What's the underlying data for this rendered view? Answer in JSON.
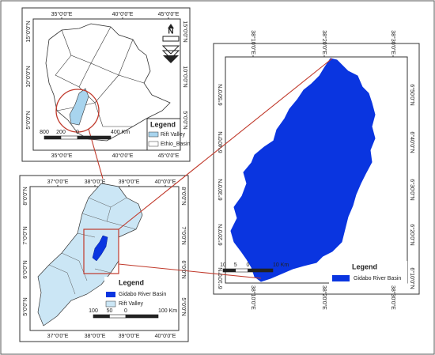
{
  "maps": [
    {
      "x_labels": [
        "35°0'0\"E",
        "40°0'0\"E",
        "45°0'0\"E"
      ],
      "y_labels": [
        "15°0'0\"N",
        "10°0'0\"N",
        "5°0'0\"N"
      ],
      "north": "N",
      "legend": {
        "title": "Legend",
        "items": [
          "Rift Valley",
          "Ethio_Basin"
        ]
      },
      "scale": [
        "800",
        "200",
        "0",
        "400 Km"
      ]
    },
    {
      "x_labels": [
        "37°0'0\"E",
        "38°0'0\"E",
        "39°0'0\"E",
        "40°0'0\"E"
      ],
      "y_labels": [
        "8°0'0\"N",
        "7°0'0\"N",
        "6°0'0\"N",
        "5°0'0\"N"
      ],
      "legend": {
        "title": "Legend",
        "items": [
          "Gidabo River Basin",
          "Rift Valley"
        ]
      },
      "scale": [
        "100",
        "50",
        "0",
        "100 Km"
      ]
    },
    {
      "x_labels": [
        "38°10'0\"E",
        "38°20'0\"E",
        "38°30'0\"E"
      ],
      "y_labels": [
        "6°50'0\"N",
        "6°40'0\"N",
        "6°30'0\"N",
        "6°20'0\"N",
        "6°10'0\"N"
      ],
      "legend": {
        "title": "Legend",
        "items": [
          "Gidabo River Basin"
        ]
      },
      "scale": [
        "10",
        "5",
        "0",
        "10 Km"
      ]
    }
  ]
}
